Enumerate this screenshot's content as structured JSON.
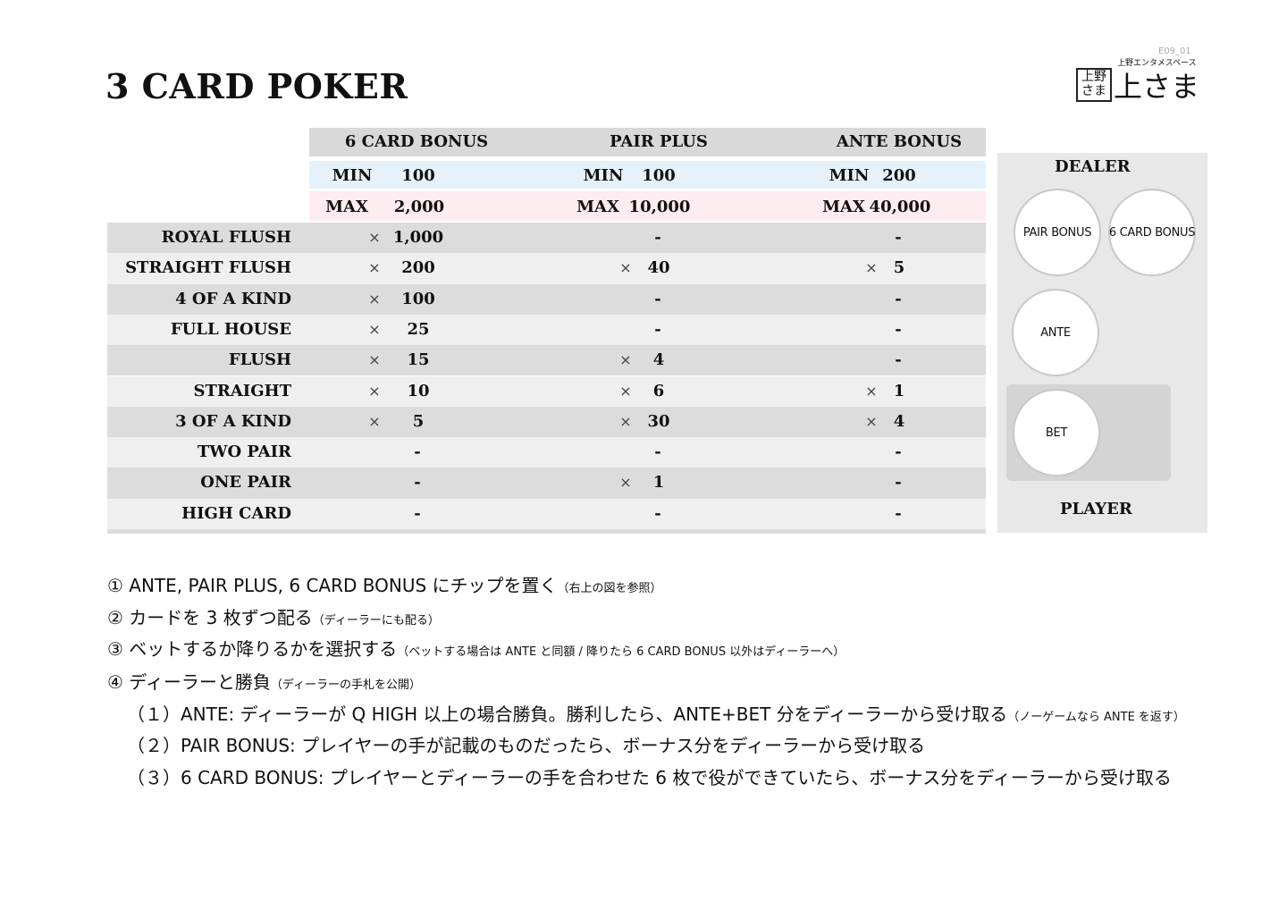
{
  "title": "3 CARD POKER",
  "doc_code": "E09_01",
  "logo": {
    "box_text": "上野さま",
    "subtitle": "上野エンタメスペース",
    "main": "上さま"
  },
  "columns": [
    {
      "name": "6 CARD BONUS",
      "min_label": "MIN",
      "min": "100",
      "max_label": "MAX",
      "max": "2,000"
    },
    {
      "name": "PAIR PLUS",
      "min_label": "MIN",
      "min": "100",
      "max_label": "MAX",
      "max": "10,000"
    },
    {
      "name": "ANTE BONUS",
      "min_label": "MIN",
      "min": "200",
      "max_label": "MAX",
      "max": "40,000"
    }
  ],
  "multiplier_symbol": "×",
  "rows": [
    {
      "hand": "ROYAL FLUSH",
      "values": [
        "1,000",
        "-",
        "-"
      ]
    },
    {
      "hand": "STRAIGHT FLUSH",
      "values": [
        "200",
        "40",
        "5"
      ]
    },
    {
      "hand": "4 OF A KIND",
      "values": [
        "100",
        "-",
        "-"
      ]
    },
    {
      "hand": "FULL HOUSE",
      "values": [
        "25",
        "-",
        "-"
      ]
    },
    {
      "hand": "FLUSH",
      "values": [
        "15",
        "4",
        "-"
      ]
    },
    {
      "hand": "STRAIGHT",
      "values": [
        "10",
        "6",
        "1"
      ]
    },
    {
      "hand": "3 OF A KIND",
      "values": [
        "5",
        "30",
        "4"
      ]
    },
    {
      "hand": "TWO PAIR",
      "values": [
        "-",
        "-",
        "-"
      ]
    },
    {
      "hand": "ONE PAIR",
      "values": [
        "-",
        "1",
        "-"
      ]
    },
    {
      "hand": "HIGH CARD",
      "values": [
        "-",
        "-",
        "-"
      ]
    }
  ],
  "layout_diagram": {
    "dealer": "DEALER",
    "player": "PLAYER",
    "pair_bonus": "PAIR BONUS",
    "six_card_bonus": "6 CARD BONUS",
    "ante": "ANTE",
    "bet": "BET"
  },
  "instructions": [
    {
      "main": "① ANTE, PAIR PLUS, 6 CARD BONUS にチップを置く",
      "note": "（右上の図を参照）"
    },
    {
      "main": "② カードを 3 枚ずつ配る",
      "note": "（ディーラーにも配る）"
    },
    {
      "main": "③ ベットするか降りるかを選択する",
      "note": "（ベットする場合は ANTE と同額 / 降りたら 6 CARD BONUS 以外はディーラーへ）"
    },
    {
      "main": "④ ディーラーと勝負",
      "note": "（ディーラーの手札を公開）"
    },
    {
      "main": "（１）ANTE: ディーラーが Q HIGH 以上の場合勝負。勝利したら、ANTE+BET 分をディーラーから受け取る",
      "note": "（ノーゲームなら ANTE を返す）"
    },
    {
      "main": "（２）PAIR BONUS: プレイヤーの手が記載のものだったら、ボーナス分をディーラーから受け取る",
      "note": ""
    },
    {
      "main": "（３）6 CARD BONUS: プレイヤーとディーラーの手を合わせた 6 枚で役ができていたら、ボーナス分をディーラーから受け取る",
      "note": ""
    }
  ],
  "colors": {
    "header": "#d9d9d9",
    "min_row": "#e6f2fb",
    "max_row": "#fdecf0",
    "row_dark": "#dcdcdc",
    "row_light": "#efefef",
    "panel": "#e8e8e8"
  }
}
